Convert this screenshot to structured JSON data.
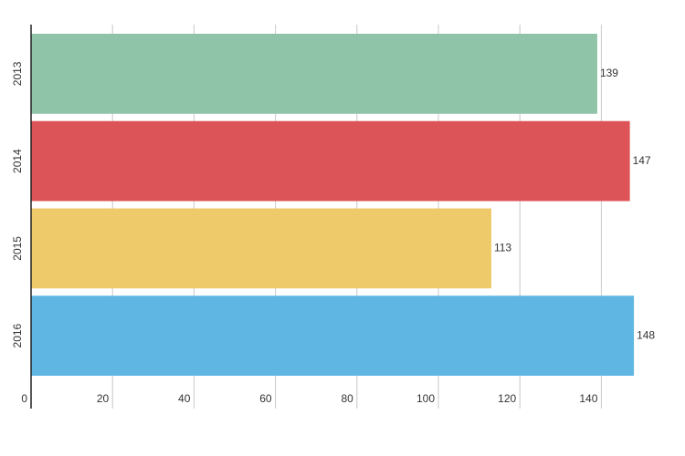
{
  "chart_data": {
    "type": "bar",
    "orientation": "horizontal",
    "categories": [
      "2013",
      "2014",
      "2015",
      "2016"
    ],
    "values": [
      139,
      147,
      113,
      148
    ],
    "colors": [
      "#8fc4a8",
      "#dc5457",
      "#efca6a",
      "#5fb6e3"
    ],
    "xlim": [
      0,
      150
    ],
    "xticks": [
      0,
      20,
      40,
      60,
      80,
      100,
      120,
      140
    ],
    "grid": true
  }
}
